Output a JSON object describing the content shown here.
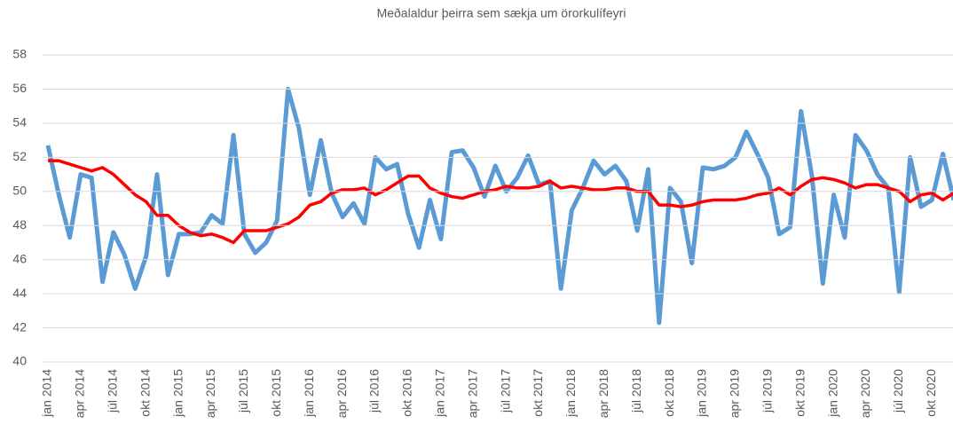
{
  "chart_data": {
    "type": "line",
    "title": "Meðalaldur þeirra sem sækja um örorkulífeyri",
    "categories": [
      "jan 2014",
      null,
      null,
      "apr 2014",
      null,
      null,
      "júl 2014",
      null,
      null,
      "okt 2014",
      null,
      null,
      "jan 2015",
      null,
      null,
      "apr 2015",
      null,
      null,
      "júl 2015",
      null,
      null,
      "okt 2015",
      null,
      null,
      "jan 2016",
      null,
      null,
      "apr 2016",
      null,
      null,
      "júl 2016",
      null,
      null,
      "okt 2016",
      null,
      null,
      "jan 2017",
      null,
      null,
      "apr 2017",
      null,
      null,
      "júl 2017",
      null,
      null,
      "okt 2017",
      null,
      null,
      "jan 2018",
      null,
      null,
      "apr 2018",
      null,
      null,
      "júl 2018",
      null,
      null,
      "okt 2018",
      null,
      null,
      "jan 2019",
      null,
      null,
      "apr 2019",
      null,
      null,
      "júl 2019",
      null,
      null,
      "okt 2019",
      null,
      null,
      "jan 2020",
      null,
      null,
      "apr 2020",
      null,
      null,
      "júl 2020",
      null,
      null,
      "okt 2020",
      null,
      null
    ],
    "series": [
      {
        "color": "#5b9bd5",
        "values": [
          52.7,
          49.8,
          47.3,
          51.0,
          50.8,
          44.7,
          47.6,
          46.3,
          44.3,
          46.2,
          51.0,
          45.1,
          47.5,
          47.5,
          47.6,
          48.6,
          48.1,
          53.3,
          47.5,
          46.4,
          47.0,
          48.3,
          56.0,
          53.7,
          49.8,
          53.0,
          49.9,
          48.5,
          49.3,
          48.1,
          52.0,
          51.3,
          51.6,
          48.7,
          46.7,
          49.5,
          47.2,
          52.3,
          52.4,
          51.4,
          49.7,
          51.5,
          50.0,
          50.8,
          52.1,
          50.4,
          50.6,
          44.3,
          48.9,
          50.2,
          51.8,
          51.0,
          51.5,
          50.6,
          47.7,
          51.3,
          42.3,
          50.2,
          49.4,
          45.8,
          51.4,
          51.3,
          51.5,
          52.0,
          53.5,
          52.2,
          50.8,
          47.5,
          47.9,
          54.7,
          50.9,
          44.6,
          49.8,
          47.3,
          53.3,
          52.4,
          51.0,
          50.2,
          44.1,
          52.0,
          49.1,
          49.5,
          52.2,
          49.5
        ]
      },
      {
        "color": "#ff0000",
        "values": [
          51.8,
          51.8,
          51.6,
          51.4,
          51.2,
          51.4,
          51.0,
          50.4,
          49.8,
          49.4,
          48.6,
          48.6,
          48.0,
          47.6,
          47.4,
          47.5,
          47.3,
          47.0,
          47.7,
          47.7,
          47.7,
          47.9,
          48.1,
          48.5,
          49.2,
          49.4,
          49.9,
          50.1,
          50.1,
          50.2,
          49.8,
          50.1,
          50.5,
          50.9,
          50.9,
          50.2,
          49.9,
          49.7,
          49.6,
          49.8,
          50.0,
          50.1,
          50.3,
          50.2,
          50.2,
          50.3,
          50.6,
          50.2,
          50.3,
          50.2,
          50.1,
          50.1,
          50.2,
          50.2,
          50.0,
          50.0,
          49.2,
          49.2,
          49.1,
          49.2,
          49.4,
          49.5,
          49.5,
          49.5,
          49.6,
          49.8,
          49.9,
          50.2,
          49.8,
          50.3,
          50.7,
          50.8,
          50.7,
          50.5,
          50.2,
          50.4,
          50.4,
          50.2,
          50.0,
          49.4,
          49.8,
          49.9,
          49.5,
          49.9
        ]
      }
    ],
    "ylim": [
      40,
      58
    ],
    "yticks": [
      40,
      42,
      44,
      46,
      48,
      50,
      52,
      54,
      56,
      58
    ],
    "grid": true
  }
}
